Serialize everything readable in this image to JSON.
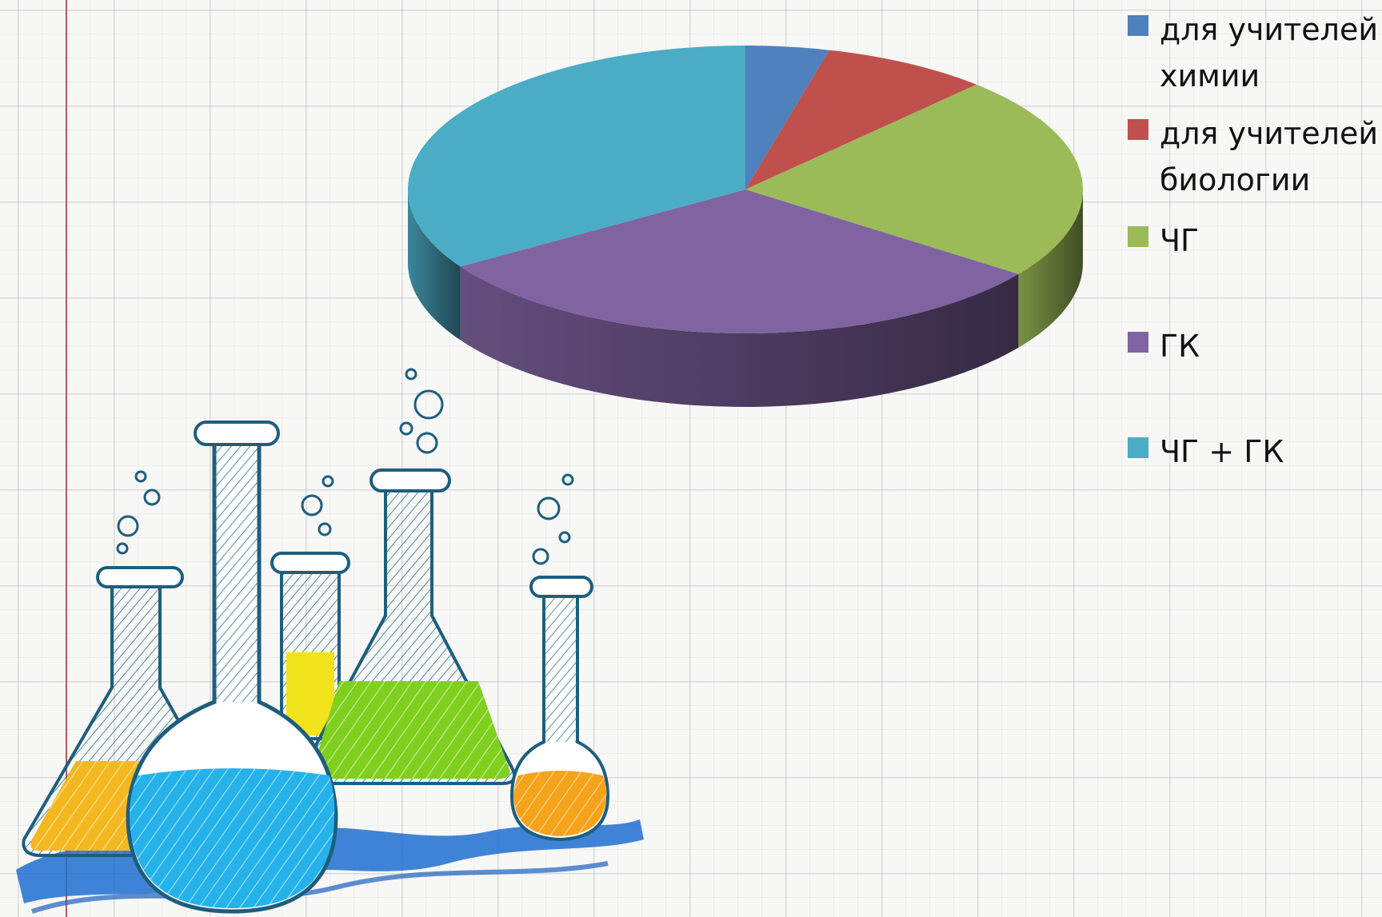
{
  "chart_data": {
    "type": "pie",
    "three_d": true,
    "title": "",
    "legend_position": "right",
    "slices": [
      {
        "label": "для учителей химии",
        "value": 4,
        "color": "#4f81bd"
      },
      {
        "label": "для учителей биологии",
        "value": 8,
        "color": "#c0504d"
      },
      {
        "label": "ЧГ",
        "value": 23,
        "color": "#9bbb59"
      },
      {
        "label": "ГК",
        "value": 31,
        "color": "#8064a2"
      },
      {
        "label": "ЧГ + ГК",
        "value": 34,
        "color": "#4bacc6"
      }
    ]
  },
  "illustration": {
    "name": "chemistry-flasks-sketch"
  }
}
